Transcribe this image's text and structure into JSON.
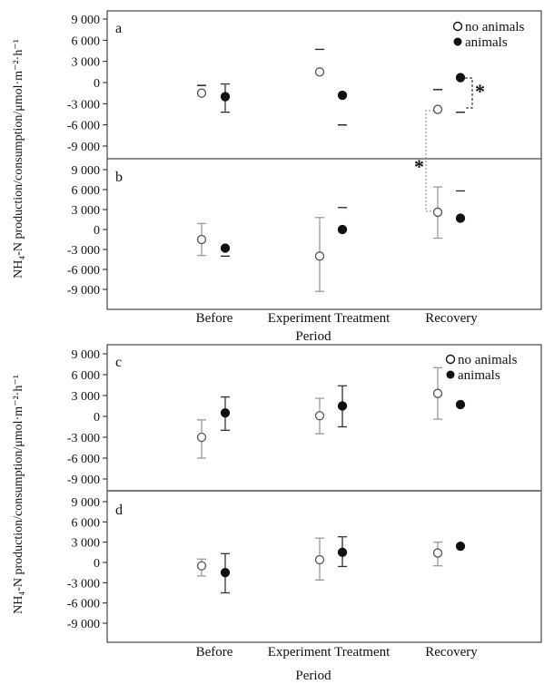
{
  "y_axis_label": "NH₄-N production/consumption/μmol·m⁻²·h⁻¹",
  "x_axis_label": "Period",
  "categories": [
    "Before",
    "Experiment Treatment",
    "Recovery"
  ],
  "legend": {
    "no_animals": "no animals",
    "animals": "animals"
  },
  "significance_marker": "*",
  "chart_data": [
    {
      "type": "scatter",
      "panel": "a",
      "categories": [
        "Before",
        "Experiment Treatment",
        "Recovery"
      ],
      "ylim": [
        -11000,
        11000
      ],
      "yticks": [
        9000,
        6000,
        3000,
        0,
        -3000,
        -6000,
        -9000
      ],
      "ytick_labels": [
        "9 000",
        "6 000",
        "3 000",
        "0",
        "-3 000",
        "-6 000",
        "-9 000"
      ],
      "series": [
        {
          "name": "no animals",
          "values": [
            -1500,
            1500,
            -3800
          ],
          "err_low": [
            -400,
            null,
            -1000
          ],
          "err_high": [
            -400,
            4700,
            -1000
          ]
        },
        {
          "name": "animals",
          "values": [
            -2000,
            -1800,
            700
          ],
          "err_low": [
            -4200,
            -6000,
            -4200
          ],
          "err_high": [
            -200,
            -6000,
            -4200
          ]
        }
      ],
      "legend": "top-right"
    },
    {
      "type": "scatter",
      "panel": "b",
      "categories": [
        "Before",
        "Experiment Treatment",
        "Recovery"
      ],
      "ylim": [
        -11000,
        11000
      ],
      "yticks": [
        9000,
        6000,
        3000,
        0,
        -3000,
        -6000,
        -9000
      ],
      "ytick_labels": [
        "9 000",
        "6 000",
        "3 000",
        "0",
        "-3 000",
        "-6 000",
        "-9 000"
      ],
      "series": [
        {
          "name": "no animals",
          "values": [
            -1500,
            -4000,
            2600
          ],
          "err_low": [
            -3900,
            -9300,
            -1300
          ],
          "err_high": [
            900,
            1800,
            6400
          ]
        },
        {
          "name": "animals",
          "values": [
            -2800,
            0,
            1700
          ],
          "err_low": [
            -4000,
            null,
            null
          ],
          "err_high": [
            null,
            3300,
            5800
          ]
        }
      ]
    },
    {
      "type": "scatter",
      "panel": "c",
      "categories": [
        "Before",
        "Experiment Treatment",
        "Recovery"
      ],
      "ylim": [
        -11000,
        11000
      ],
      "yticks": [
        9000,
        6000,
        3000,
        0,
        -3000,
        -6000,
        -9000
      ],
      "ytick_labels": [
        "9 000",
        "6 000",
        "3 000",
        "0",
        "-3 000",
        "-6 000",
        "-9 000"
      ],
      "series": [
        {
          "name": "no animals",
          "values": [
            -3000,
            100,
            3300
          ],
          "err_low": [
            -6000,
            -2500,
            -400
          ],
          "err_high": [
            -500,
            2600,
            7000
          ]
        },
        {
          "name": "animals",
          "values": [
            500,
            1500,
            1700
          ],
          "err_low": [
            -2000,
            -1500,
            null
          ],
          "err_high": [
            2800,
            4400,
            null
          ]
        }
      ],
      "legend": "top-right"
    },
    {
      "type": "scatter",
      "panel": "d",
      "categories": [
        "Before",
        "Experiment Treatment",
        "Recovery"
      ],
      "ylim": [
        -11000,
        11000
      ],
      "yticks": [
        9000,
        6000,
        3000,
        0,
        -3000,
        -6000,
        -9000
      ],
      "ytick_labels": [
        "9 000",
        "6 000",
        "3 000",
        "0",
        "-3 000",
        "-6 000",
        "-9 000"
      ],
      "series": [
        {
          "name": "no animals",
          "values": [
            -500,
            400,
            1400
          ],
          "err_low": [
            -2000,
            -2600,
            -500
          ],
          "err_high": [
            500,
            3600,
            3000
          ]
        },
        {
          "name": "animals",
          "values": [
            -1500,
            1500,
            2400
          ],
          "err_low": [
            -4500,
            -600,
            null
          ],
          "err_high": [
            1300,
            3800,
            null
          ]
        }
      ]
    }
  ]
}
